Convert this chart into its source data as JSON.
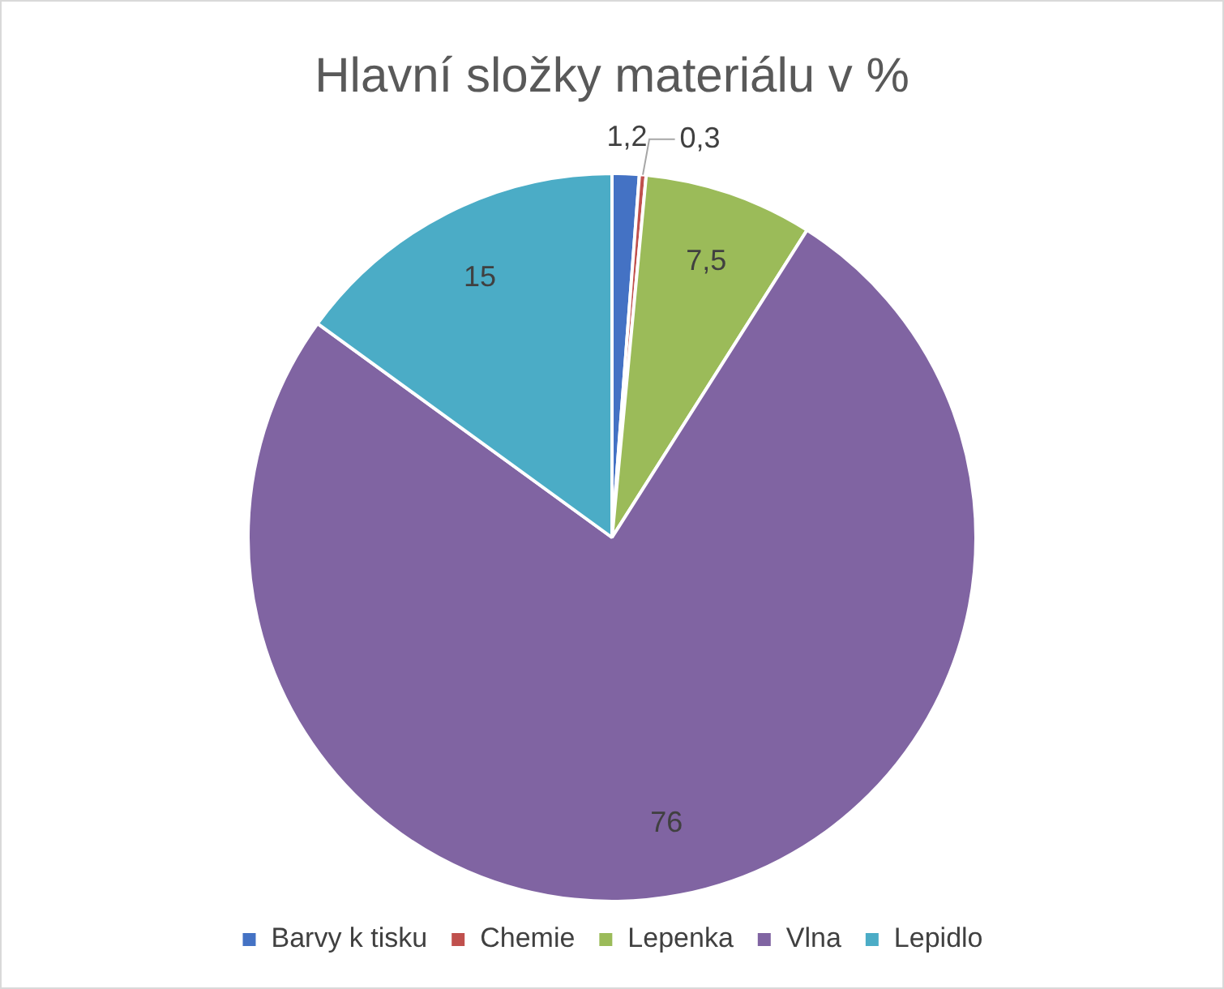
{
  "chart_data": {
    "type": "pie",
    "title": "Hlavní složky materiálu v %",
    "categories": [
      "Barvy k tisku",
      "Chemie",
      "Lepenka",
      "Vlna",
      "Lepidlo"
    ],
    "values": [
      1.2,
      0.3,
      7.5,
      76,
      15
    ],
    "colors": [
      "#4472c4",
      "#c0504d",
      "#9bbb59",
      "#8064a2",
      "#4bacc6"
    ],
    "value_labels": [
      "1,2",
      "0,3",
      "7,5",
      "76",
      "15"
    ],
    "legend": "bottom"
  }
}
